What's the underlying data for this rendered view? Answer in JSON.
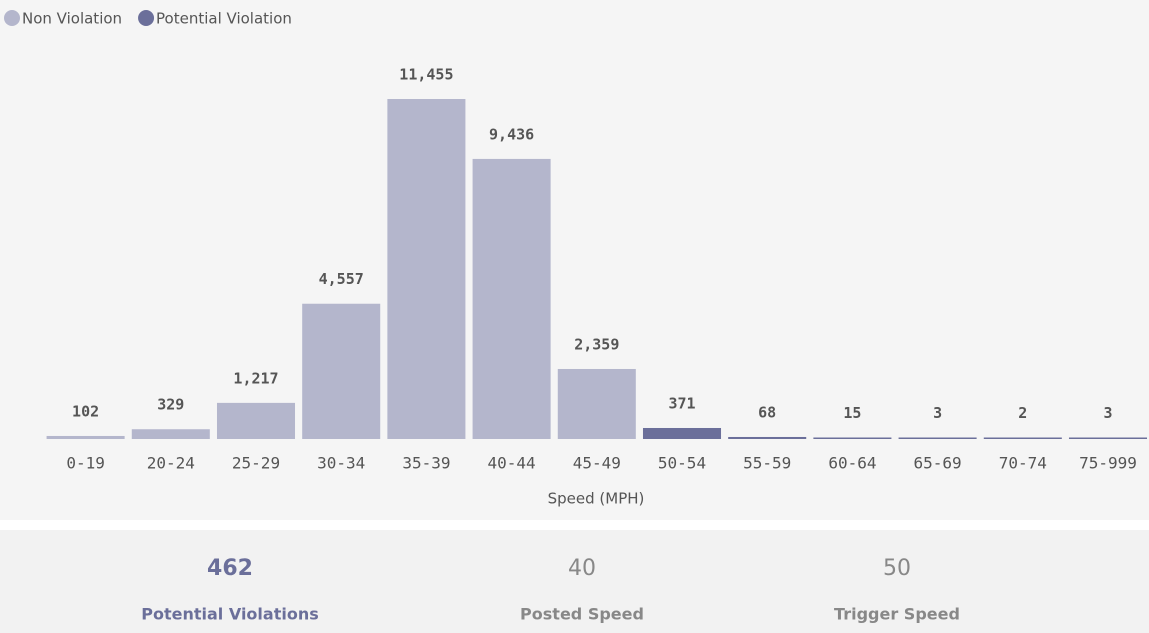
{
  "chart_data": {
    "type": "bar",
    "x_label": "Speed (MPH)",
    "categories": [
      "0-19",
      "20-24",
      "25-29",
      "30-34",
      "35-39",
      "40-44",
      "45-49",
      "50-54",
      "55-59",
      "60-64",
      "65-69",
      "70-74",
      "75-999"
    ],
    "series": [
      {
        "name": "Non Violation",
        "color": "#b4b6cc",
        "values": [
          102,
          329,
          1217,
          4557,
          11455,
          9436,
          2359,
          null,
          null,
          null,
          null,
          null,
          null
        ],
        "value_labels": [
          "102",
          "329",
          "1,217",
          "4,557",
          "11,455",
          "9,436",
          "2,359",
          null,
          null,
          null,
          null,
          null,
          null
        ]
      },
      {
        "name": "Potential Violation",
        "color": "#6b6f9a",
        "values": [
          null,
          null,
          null,
          null,
          null,
          null,
          null,
          371,
          68,
          15,
          3,
          2,
          3
        ],
        "value_labels": [
          null,
          null,
          null,
          null,
          null,
          null,
          null,
          "371",
          "68",
          "15",
          "3",
          "2",
          "3"
        ]
      }
    ],
    "legend": "top-left"
  },
  "kpis": [
    {
      "value": 462,
      "label": "Potential Violations"
    },
    {
      "value": 40,
      "label": "Posted Speed"
    },
    {
      "value": 50,
      "label": "Trigger Speed"
    }
  ]
}
